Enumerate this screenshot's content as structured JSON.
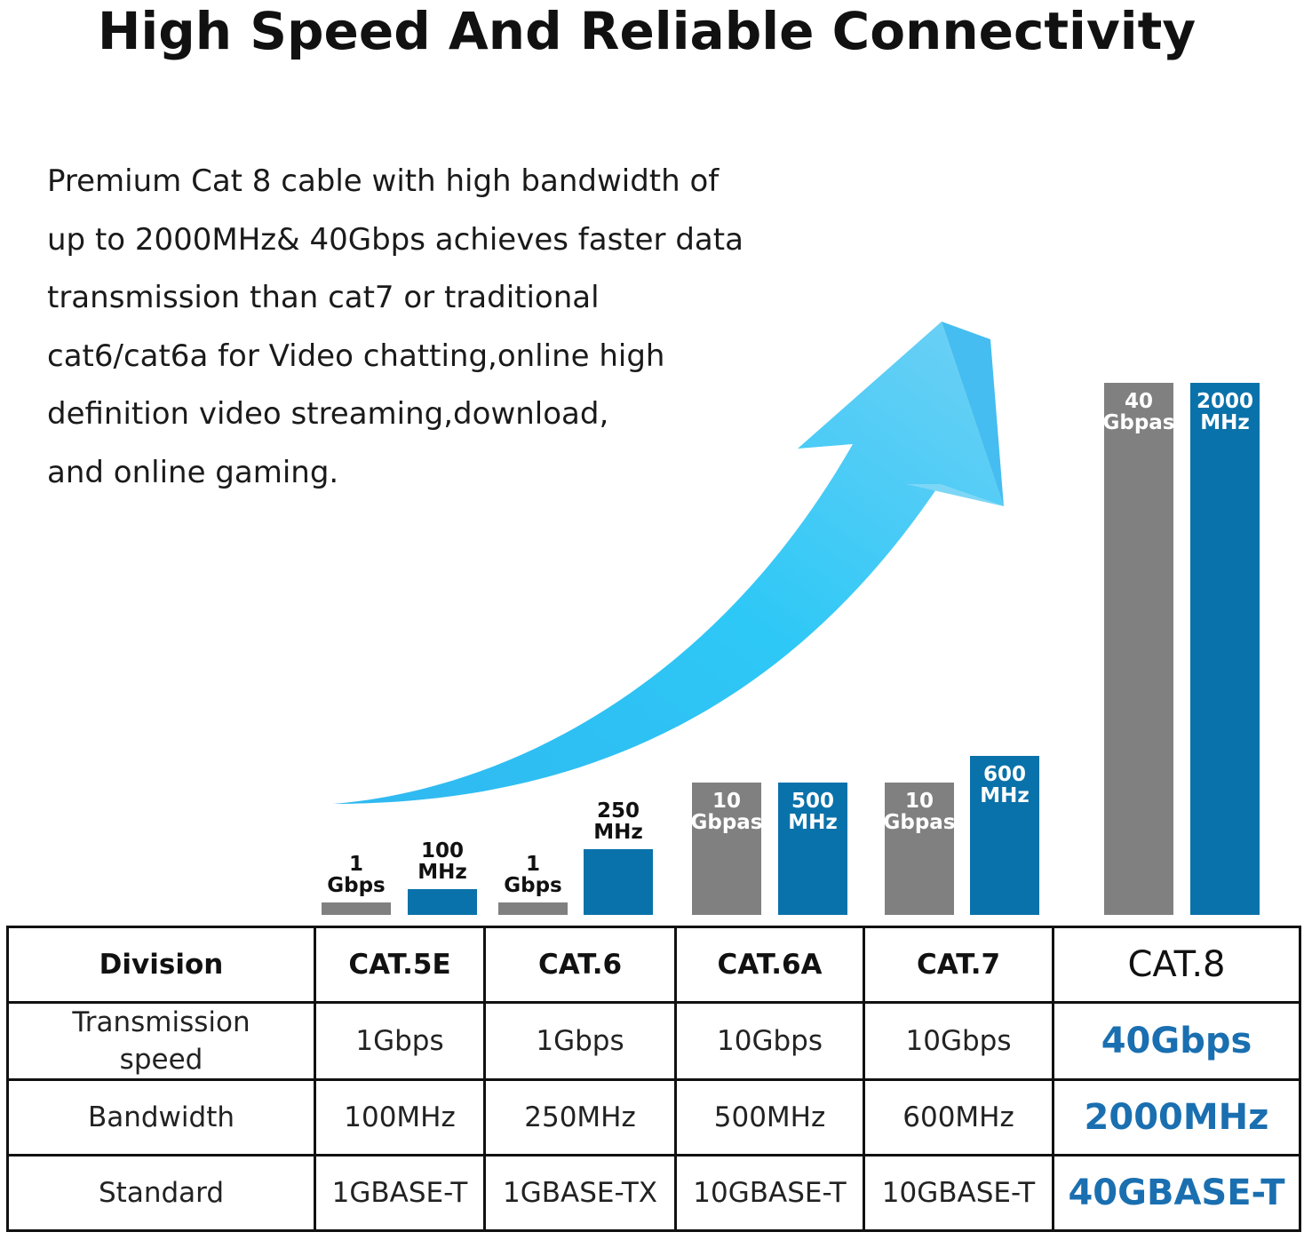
{
  "title": "High Speed And Reliable Connectivity",
  "description_lines": [
    "Premium Cat 8 cable with high bandwidth of",
    "up to 2000MHz& 40Gbps achieves faster data",
    "transmission than cat7 or traditional",
    "cat6/cat6a for Video chatting,online high",
    "definition video streaming,download,",
    "and online gaming."
  ],
  "colors": {
    "speed_bar": "#808080",
    "bandwidth_bar": "#0a72aa",
    "arrow": "#4cc3f0",
    "highlight_text": "#1a6fb0"
  },
  "chart_data": {
    "type": "bar",
    "categories": [
      "CAT.5E",
      "CAT.6",
      "CAT.6A",
      "CAT.7",
      "CAT.8"
    ],
    "series": [
      {
        "metric": "speed",
        "unit": "Gbps",
        "values": [
          1,
          1,
          10,
          10,
          40
        ],
        "labels": [
          [
            "1",
            "Gbps"
          ],
          [
            "1",
            "Gbps"
          ],
          [
            "10",
            "Gbpas"
          ],
          [
            "10",
            "Gbpas"
          ],
          [
            "40",
            "Gbpas"
          ]
        ]
      },
      {
        "metric": "bandwidth",
        "unit": "MHz",
        "values": [
          100,
          250,
          500,
          600,
          2000
        ],
        "labels": [
          [
            "100",
            "MHz"
          ],
          [
            "250",
            "MHz"
          ],
          [
            "500",
            "MHz"
          ],
          [
            "600",
            "MHz"
          ],
          [
            "2000",
            "MHz"
          ]
        ]
      }
    ],
    "decoration": "upward curved arrow"
  },
  "table": {
    "header": [
      "Division",
      "CAT.5E",
      "CAT.6",
      "CAT.6A",
      "CAT.7",
      "CAT.8"
    ],
    "rows": [
      [
        "Transmission speed",
        "1Gbps",
        "1Gbps",
        "10Gbps",
        "10Gbps",
        "40Gbps"
      ],
      [
        "Bandwidth",
        "100MHz",
        "250MHz",
        "500MHz",
        "600MHz",
        "2000MHz"
      ],
      [
        "Standard",
        "1GBASE-T",
        "1GBASE-TX",
        "10GBASE-T",
        "10GBASE-T",
        "40GBASE-T"
      ]
    ]
  }
}
